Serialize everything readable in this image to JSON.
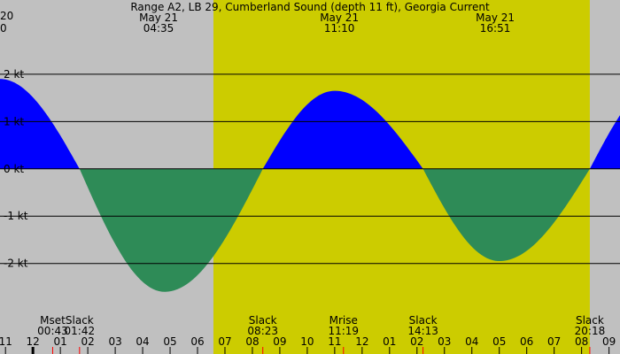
{
  "colors": {
    "night": "#c0c0c0",
    "day": "#cccc00",
    "flood": "#0000ff",
    "ebb": "#2e8b57",
    "grid": "#000000",
    "tick_red": "#ff0000"
  },
  "chart_data": {
    "type": "area",
    "title": "Range A2, LB 29, Cumberland Sound (depth 11 ft), Georgia Current",
    "corner_labels": [
      "20",
      "0"
    ],
    "ylim": [
      -3.54,
      3.57
    ],
    "y_ticks": [
      {
        "value": 2,
        "label": "2 kt"
      },
      {
        "value": 1,
        "label": "1 kt"
      },
      {
        "value": 0,
        "label": "0 kt"
      },
      {
        "value": -1,
        "label": "-1 kt"
      },
      {
        "value": -2,
        "label": "-2 kt"
      }
    ],
    "xlim": [
      -1.2,
      21.4
    ],
    "daylight": {
      "rise": 6.58,
      "set": 20.3
    },
    "sun_labels": [
      {
        "date": "May 21",
        "time": "04:35",
        "hour": 4.58
      },
      {
        "date": "May 21",
        "time": "11:10",
        "hour": 11.17
      },
      {
        "date": "May 21",
        "time": "16:51",
        "hour": 16.85
      }
    ],
    "current": {
      "unit": "kt",
      "slack_times": [
        1.7,
        8.38,
        14.22,
        20.3
      ],
      "peaks": [
        {
          "hour": -1.2,
          "value": 1.9
        },
        {
          "hour": 4.8,
          "value": -2.6
        },
        {
          "hour": 11.0,
          "value": 1.65
        },
        {
          "hour": 17.0,
          "value": -1.95
        },
        {
          "hour": 23.0,
          "value": 1.9
        }
      ]
    },
    "events": [
      {
        "label": "Mset",
        "time": "00:43",
        "hour": 0.72
      },
      {
        "label": "Slack",
        "time": "01:42",
        "hour": 1.7
      },
      {
        "label": "Slack",
        "time": "08:23",
        "hour": 8.38
      },
      {
        "label": "Mrise",
        "time": "11:19",
        "hour": 11.32
      },
      {
        "label": "Slack",
        "time": "14:13",
        "hour": 14.22
      },
      {
        "label": "Slack",
        "time": "20:18",
        "hour": 20.3
      }
    ],
    "hour_ticks": [
      {
        "label": "11",
        "hour": -1
      },
      {
        "label": "12",
        "hour": 0
      },
      {
        "label": "01",
        "hour": 1
      },
      {
        "label": "02",
        "hour": 2
      },
      {
        "label": "03",
        "hour": 3
      },
      {
        "label": "04",
        "hour": 4
      },
      {
        "label": "05",
        "hour": 5
      },
      {
        "label": "06",
        "hour": 6
      },
      {
        "label": "07",
        "hour": 7
      },
      {
        "label": "08",
        "hour": 8
      },
      {
        "label": "09",
        "hour": 9
      },
      {
        "label": "10",
        "hour": 10
      },
      {
        "label": "11",
        "hour": 11
      },
      {
        "label": "12",
        "hour": 12
      },
      {
        "label": "01",
        "hour": 13
      },
      {
        "label": "02",
        "hour": 14
      },
      {
        "label": "03",
        "hour": 15
      },
      {
        "label": "04",
        "hour": 16
      },
      {
        "label": "05",
        "hour": 17
      },
      {
        "label": "06",
        "hour": 18
      },
      {
        "label": "07",
        "hour": 19
      },
      {
        "label": "08",
        "hour": 20
      },
      {
        "label": "09",
        "hour": 21
      }
    ]
  }
}
